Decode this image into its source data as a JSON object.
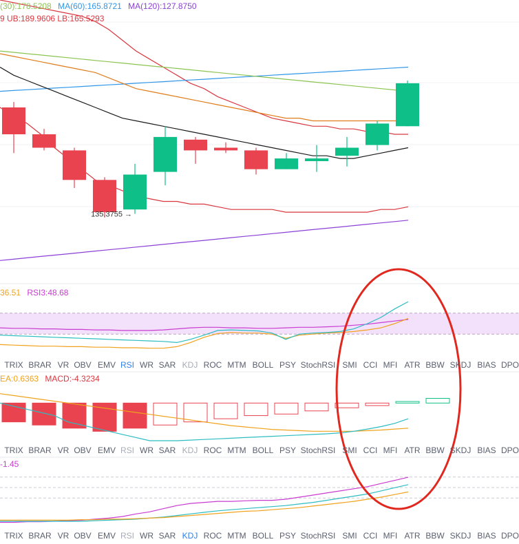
{
  "colors": {
    "up": "#0fbf88",
    "down": "#e8434f",
    "ma30": "#e07b1a",
    "ma60": "#2f96e8",
    "ma120": "#8a3fd6",
    "ma_green": "#8ac44f",
    "boll_upper": "#d9373f",
    "boll_lower": "#d9373f",
    "boll_mid": "#1a1a1a",
    "rsi1": "#c93bd1",
    "rsi2": "#f0a21c",
    "rsi3": "#2bbcc1",
    "macd_dif": "#2bbcc1",
    "macd_dea": "#f0a21c",
    "annotation": "#e0281f",
    "band": "#f3e1fb"
  },
  "legend_main": {
    "ma30": "(30):178.5208",
    "ma60": "MA(60):165.8721",
    "ma120": "MA(120):127.8750",
    "boll": "9  UB:189.9606  LB:165.5293"
  },
  "legend_rsi": {
    "rsi2": "36.51",
    "rsi3": "RSI3:48.68"
  },
  "legend_macd": {
    "dea": "EA:0.6363",
    "macd": "MACD:-4.3234"
  },
  "legend_kdj": {
    "value": "-1.45"
  },
  "low_marker": "135.3755",
  "tabs_1": [
    "TRIX",
    "BRAR",
    "VR",
    "OBV",
    "EMV",
    "RSI",
    "WR",
    "SAR",
    "KDJ",
    "ROC",
    "MTM",
    "BOLL",
    "PSY",
    "StochRSI",
    "SMI",
    "CCI",
    "MFI",
    "ATR",
    "BBW",
    "SKDJ",
    "BIAS",
    "DPO"
  ],
  "tabs_2": [
    "TRIX",
    "BRAR",
    "VR",
    "OBV",
    "EMV",
    "RSI",
    "WR",
    "SAR",
    "KDJ",
    "ROC",
    "MTM",
    "BOLL",
    "PSY",
    "StochRSI",
    "SMI",
    "CCI",
    "MFI",
    "ATR",
    "BBW",
    "SKDJ",
    "BIAS",
    "DPO"
  ],
  "tabs_3": [
    "TRIX",
    "BRAR",
    "VR",
    "OBV",
    "EMV",
    "RSI",
    "WR",
    "SAR",
    "KDJ",
    "ROC",
    "MTM",
    "BOLL",
    "PSY",
    "StochRSI",
    "SMI",
    "CCI",
    "MFI",
    "ATR",
    "BBW",
    "SKDJ",
    "BIAS",
    "DPO"
  ],
  "tab_state_1": {
    "active": "RSI",
    "dim": [
      "KDJ"
    ]
  },
  "tab_state_2": {
    "active": "",
    "dim": [
      "RSI",
      "KDJ"
    ]
  },
  "tab_state_3": {
    "active": "KDJ",
    "dim": [
      "RSI"
    ]
  },
  "chart_data": {
    "type": "candlestick",
    "price_range": [
      115,
      215
    ],
    "candles": [
      {
        "open": 175,
        "close": 165,
        "high": 177,
        "low": 158
      },
      {
        "open": 165,
        "close": 160,
        "high": 167,
        "low": 159
      },
      {
        "open": 159,
        "close": 148,
        "high": 160,
        "low": 145
      },
      {
        "open": 148,
        "close": 136,
        "high": 149,
        "low": 134
      },
      {
        "open": 137,
        "close": 150,
        "high": 154,
        "low": 135.3755
      },
      {
        "open": 151,
        "close": 164,
        "high": 168,
        "low": 146
      },
      {
        "open": 163,
        "close": 159,
        "high": 164,
        "low": 154
      },
      {
        "open": 160,
        "close": 159,
        "high": 162,
        "low": 158
      },
      {
        "open": 159,
        "close": 152,
        "high": 160,
        "low": 150
      },
      {
        "open": 152,
        "close": 156,
        "high": 158,
        "low": 152
      },
      {
        "open": 155,
        "close": 156,
        "high": 161,
        "low": 151
      },
      {
        "open": 157,
        "close": 160,
        "high": 164,
        "low": 153
      },
      {
        "open": 161,
        "close": 169,
        "high": 170,
        "low": 159
      },
      {
        "open": 168,
        "close": 184,
        "high": 185,
        "low": 168
      }
    ],
    "boll_upper": [
      215,
      214,
      213,
      212,
      211,
      210,
      209,
      207,
      204,
      200,
      196,
      193,
      190,
      187,
      184,
      182,
      179,
      177,
      175,
      173,
      171,
      170,
      169,
      168,
      168,
      167,
      167,
      166,
      166,
      165,
      165
    ],
    "boll_mid": [
      190,
      187,
      185,
      183,
      181,
      179,
      177,
      175,
      173,
      171,
      170,
      169,
      168,
      167,
      166,
      165,
      164,
      163,
      162,
      161,
      160,
      159,
      158,
      157,
      157,
      156,
      156,
      157,
      158,
      159,
      160
    ],
    "boll_lower": [
      175,
      172,
      169,
      165,
      160,
      156,
      152,
      148,
      146,
      144,
      142,
      141,
      140,
      140,
      139,
      139,
      138,
      137,
      137,
      137,
      137,
      136,
      136,
      136,
      136,
      136,
      136,
      136,
      137,
      137,
      138
    ],
    "ma30": [
      195,
      194,
      193,
      192,
      191,
      190,
      189,
      188,
      186,
      184,
      182,
      181,
      180,
      179,
      178,
      177,
      176,
      175,
      174,
      173,
      172,
      171,
      171,
      170,
      170,
      170,
      170,
      170,
      170,
      170,
      170
    ],
    "ma60": [
      181,
      181.3,
      181.6,
      181.9,
      182.2,
      182.5,
      182.8,
      183.1,
      183.4,
      183.7,
      184,
      184.3,
      184.6,
      184.9,
      185.2,
      185.5,
      185.8,
      186.1,
      186.4,
      186.7,
      187,
      187.3,
      187.6,
      187.9,
      188.2,
      188.5,
      188.8,
      189.1,
      189.4,
      189.7,
      190
    ],
    "ma120": [
      118,
      118.5,
      119,
      119.5,
      120,
      120.5,
      121,
      121.5,
      122,
      122.5,
      123,
      123.5,
      124,
      124.5,
      125,
      125.5,
      126,
      126.5,
      127,
      127.5,
      128,
      128.5,
      129,
      129.5,
      130,
      130.5,
      131,
      131.5,
      132,
      132.5,
      133
    ],
    "ma_green": [
      196,
      195.5,
      195,
      194.5,
      194,
      193.5,
      193,
      192.5,
      192,
      191.5,
      191,
      190.5,
      190,
      189.5,
      189,
      188.5,
      188,
      187.5,
      187,
      186.5,
      186,
      185.5,
      185,
      184.5,
      184,
      183.5,
      183,
      182.5,
      182,
      181.5,
      181
    ],
    "rsi": {
      "range": [
        0,
        100
      ],
      "band": [
        30,
        70
      ],
      "rsi1": [
        42,
        41,
        41,
        40,
        40,
        39,
        39,
        38,
        38,
        37,
        37,
        37,
        38,
        40,
        42,
        43,
        43,
        42,
        42,
        41,
        41,
        42,
        43,
        43,
        44,
        45,
        47,
        49,
        52,
        55,
        58
      ],
      "rsi2": [
        10,
        9,
        8,
        7,
        7,
        6,
        6,
        5,
        5,
        4,
        4,
        3,
        3,
        6,
        14,
        24,
        31,
        33,
        32,
        32,
        30,
        22,
        28,
        30,
        32,
        33,
        35,
        38,
        42,
        50,
        60
      ],
      "rsi3": [
        28,
        27,
        26,
        25,
        24,
        23,
        22,
        21,
        20,
        19,
        18,
        17,
        16,
        14,
        20,
        28,
        37,
        38,
        37,
        36,
        32,
        20,
        30,
        32,
        33,
        35,
        40,
        50,
        62,
        78,
        92
      ]
    },
    "macd": {
      "range": [
        -12,
        6
      ],
      "hist": [
        -6,
        -7,
        -8,
        -9,
        -8,
        -7,
        -6,
        -5,
        -4,
        -3.5,
        -2.5,
        -1.5,
        -0.8,
        0.5,
        1.5
      ],
      "dif": [
        0,
        -1,
        -2,
        -3,
        -4,
        -6,
        -7,
        -8,
        -9,
        -10,
        -11,
        -12,
        -12,
        -12,
        -11.8,
        -11.6,
        -11.4,
        -11.2,
        -11,
        -10.8,
        -10.6,
        -10.4,
        -10.2,
        -10,
        -9.8,
        -9.5,
        -9,
        -8.3,
        -7.5,
        -6.5,
        -5
      ],
      "dea": [
        3,
        2.4,
        1.8,
        1.2,
        0.6,
        0,
        -0.6,
        -1.2,
        -1.8,
        -2.4,
        -3,
        -3.6,
        -4.2,
        -4.8,
        -5.4,
        -6,
        -6.6,
        -7.2,
        -7.6,
        -8,
        -8.4,
        -8.6,
        -8.8,
        -9,
        -9,
        -9,
        -9,
        -8.8,
        -8.6,
        -8.3,
        -8
      ]
    },
    "kdj": {
      "range": [
        -10,
        90
      ],
      "k": [
        -8,
        -8,
        -7,
        -7,
        -6,
        -5,
        -4,
        -2,
        0,
        3,
        8,
        12,
        18,
        24,
        28,
        30,
        32,
        32,
        33,
        34,
        34,
        36,
        40,
        44,
        48,
        52,
        56,
        60,
        66,
        72,
        78
      ],
      "d": [
        -6,
        -6,
        -6,
        -6,
        -6,
        -6,
        -6,
        -5,
        -4,
        -3,
        -2,
        0,
        2,
        5,
        8,
        11,
        14,
        16,
        18,
        20,
        22,
        24,
        27,
        30,
        34,
        38,
        42,
        46,
        52,
        58,
        64
      ],
      "j": [
        -4,
        -4,
        -4,
        -4,
        -4,
        -4,
        -3,
        -3,
        -2,
        -2,
        -1,
        0,
        1,
        3,
        5,
        7,
        9,
        11,
        13,
        14,
        16,
        18,
        20,
        23,
        26,
        29,
        32,
        36,
        40,
        45,
        50
      ]
    }
  }
}
